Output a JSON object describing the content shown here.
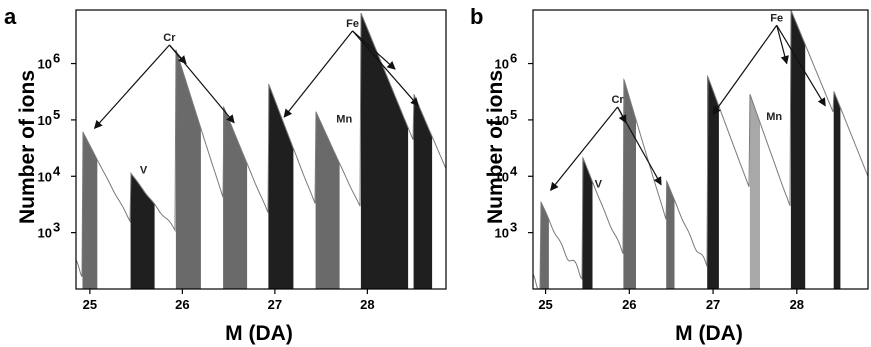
{
  "colors": {
    "background": "#ffffff",
    "trace": "#7a7a7a",
    "peak_dark": "#1f1f1f",
    "peak_mid": "#6a6a6a",
    "peak_light": "#a8a8a8",
    "axis": "#000000",
    "arrow": "#111111"
  },
  "chart_data": [
    {
      "type": "area",
      "panel_label": "a",
      "xlabel": "M (DA)",
      "ylabel": "Number of ions",
      "xlim": [
        24.85,
        28.85
      ],
      "ylim_log10": [
        2.0,
        6.95
      ],
      "y_scale": "log",
      "x_ticks": [
        {
          "value": 25,
          "label": "25"
        },
        {
          "value": 26,
          "label": "26"
        },
        {
          "value": 27,
          "label": "27"
        },
        {
          "value": 28,
          "label": "28"
        }
      ],
      "y_ticks": [
        {
          "value": 3,
          "base": "10",
          "exp": "3"
        },
        {
          "value": 4,
          "base": "10",
          "exp": "4"
        },
        {
          "value": 5,
          "base": "10",
          "exp": "5"
        },
        {
          "value": 6,
          "base": "10",
          "exp": "6"
        }
      ],
      "background_log10": 2.4,
      "peaks": [
        {
          "x0": 24.92,
          "x1": 25.08,
          "logPeak": 4.8,
          "decay": 3.2,
          "shade": "peak_mid"
        },
        {
          "x0": 25.44,
          "x1": 25.7,
          "logPeak": 4.0,
          "decay": 2.2,
          "shade": "peak_dark"
        },
        {
          "x0": 25.93,
          "x1": 26.2,
          "logPeak": 6.25,
          "decay": 5.2,
          "shade": "peak_mid"
        },
        {
          "x0": 26.44,
          "x1": 26.7,
          "logPeak": 5.25,
          "decay": 4.0,
          "shade": "peak_mid"
        },
        {
          "x0": 26.93,
          "x1": 27.2,
          "logPeak": 5.65,
          "decay": 4.3,
          "shade": "peak_dark"
        },
        {
          "x0": 27.44,
          "x1": 27.7,
          "logPeak": 5.15,
          "decay": 3.6,
          "shade": "peak_mid"
        },
        {
          "x0": 27.93,
          "x1": 28.44,
          "logPeak": 6.9,
          "decay": 4.0,
          "shade": "peak_dark"
        },
        {
          "x0": 28.5,
          "x1": 28.7,
          "logPeak": 5.4,
          "decay": 3.8,
          "shade": "peak_dark"
        }
      ],
      "annotations": [
        {
          "label": "Cr",
          "x": 25.86,
          "log": 6.4,
          "targets": [
            [
              25.05,
              4.85
            ],
            [
              26.04,
              6.0
            ],
            [
              26.56,
              4.95
            ]
          ]
        },
        {
          "label": "Fe",
          "x": 27.84,
          "log": 6.65,
          "targets": [
            [
              27.1,
              5.05
            ],
            [
              28.3,
              5.9
            ],
            [
              28.55,
              5.25
            ]
          ]
        },
        {
          "label": "V",
          "x": 25.58,
          "log": 4.05,
          "targets": []
        },
        {
          "label": "Mn",
          "x": 27.75,
          "log": 4.95,
          "targets": []
        }
      ]
    },
    {
      "type": "area",
      "panel_label": "b",
      "xlabel": "M (DA)",
      "ylabel": "Number of ions",
      "xlim": [
        24.85,
        28.85
      ],
      "ylim_log10": [
        2.0,
        6.95
      ],
      "y_scale": "log",
      "x_ticks": [
        {
          "value": 25,
          "label": "25"
        },
        {
          "value": 26,
          "label": "26"
        },
        {
          "value": 27,
          "label": "27"
        },
        {
          "value": 28,
          "label": "28"
        }
      ],
      "y_ticks": [
        {
          "value": 3,
          "base": "10",
          "exp": "3"
        },
        {
          "value": 4,
          "base": "10",
          "exp": "4"
        },
        {
          "value": 5,
          "base": "10",
          "exp": "5"
        },
        {
          "value": 6,
          "base": "10",
          "exp": "6"
        }
      ],
      "background_log10": 2.15,
      "peaks": [
        {
          "x0": 24.94,
          "x1": 25.04,
          "logPeak": 3.55,
          "decay": 3.6,
          "shade": "peak_mid"
        },
        {
          "x0": 25.44,
          "x1": 25.56,
          "logPeak": 4.35,
          "decay": 3.8,
          "shade": "peak_dark"
        },
        {
          "x0": 25.93,
          "x1": 26.08,
          "logPeak": 5.75,
          "decay": 5.0,
          "shade": "peak_mid"
        },
        {
          "x0": 26.44,
          "x1": 26.54,
          "logPeak": 3.85,
          "decay": 3.6,
          "shade": "peak_mid"
        },
        {
          "x0": 26.93,
          "x1": 27.07,
          "logPeak": 5.8,
          "decay": 4.0,
          "shade": "peak_dark"
        },
        {
          "x0": 27.44,
          "x1": 27.56,
          "logPeak": 5.45,
          "decay": 4.2,
          "shade": "peak_light"
        },
        {
          "x0": 27.93,
          "x1": 28.1,
          "logPeak": 6.95,
          "decay": 3.6,
          "shade": "peak_dark"
        },
        {
          "x0": 28.44,
          "x1": 28.52,
          "logPeak": 5.3,
          "decay": 3.8,
          "shade": "peak_dark"
        }
      ],
      "annotations": [
        {
          "label": "Cr",
          "x": 25.86,
          "log": 5.3,
          "targets": [
            [
              25.06,
              3.75
            ],
            [
              25.96,
              4.95
            ],
            [
              26.38,
              3.85
            ]
          ]
        },
        {
          "label": "Fe",
          "x": 27.76,
          "log": 6.75,
          "targets": [
            [
              27.0,
              5.1
            ],
            [
              27.88,
              6.0
            ],
            [
              28.34,
              5.25
            ]
          ]
        },
        {
          "label": "V",
          "x": 25.63,
          "log": 3.8,
          "targets": []
        },
        {
          "label": "Mn",
          "x": 27.73,
          "log": 5.0,
          "targets": []
        }
      ]
    }
  ]
}
